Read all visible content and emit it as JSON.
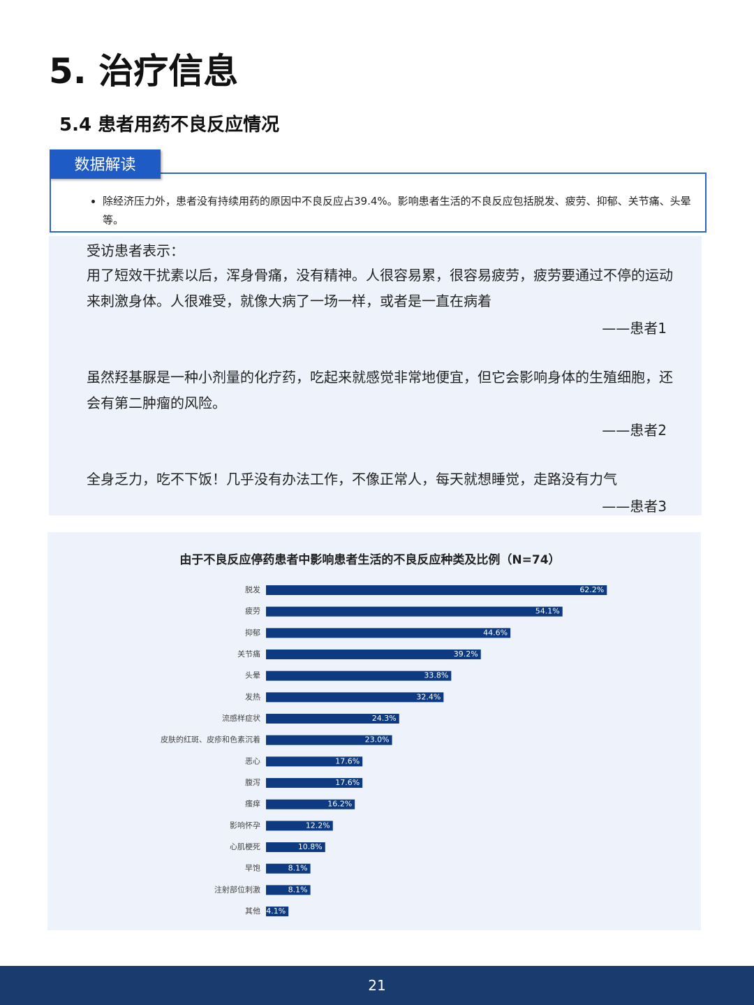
{
  "header": {
    "title": "5. 治疗信息",
    "subtitle": "5.4 患者用药不良反应情况"
  },
  "insight": {
    "tab": "数据解读",
    "bullets": [
      "除经济压力外，患者没有持续用药的原因中不良反应占39.4%。影响患者生活的不良反应包括脱发、疲劳、抑郁、关节痛、头晕等。"
    ]
  },
  "quotes": {
    "intro": "受访患者表示：",
    "items": [
      {
        "text": "用了短效干扰素以后，浑身骨痛，没有精神。人很容易累，很容易疲劳，疲劳要通过不停的运动来刺激身体。人很难受，就像大病了一场一样，或者是一直在病着",
        "source": "——患者1"
      },
      {
        "text": "虽然羟基脲是一种小剂量的化疗药，吃起来就感觉非常地便宜，但它会影响身体的生殖细胞，还会有第二肿瘤的风险。",
        "source": "——患者2"
      },
      {
        "text": "全身乏力，吃不下饭！几乎没有办法工作，不像正常人，每天就想睡觉，走路没有力气",
        "source": "——患者3"
      }
    ]
  },
  "chart_data": {
    "type": "hbar",
    "title": "由于不良反应停药患者中影响患者生活的不良反应种类及比例（N=74）",
    "categories": [
      "脱发",
      "疲劳",
      "抑郁",
      "关节痛",
      "头晕",
      "发热",
      "流感样症状",
      "皮肤的红斑、皮疹和色素沉着",
      "恶心",
      "腹泻",
      "瘙痒",
      "影响怀孕",
      "心肌梗死",
      "早饱",
      "注射部位刺激",
      "其他"
    ],
    "values": [
      62.2,
      54.1,
      44.6,
      39.2,
      33.8,
      32.4,
      24.3,
      23.0,
      17.6,
      17.6,
      16.2,
      12.2,
      10.8,
      8.1,
      8.1,
      4.1
    ],
    "value_labels": [
      "62.2%",
      "54.1%",
      "44.6%",
      "39.2%",
      "33.8%",
      "32.4%",
      "24.3%",
      "23.0%",
      "17.6%",
      "17.6%",
      "16.2%",
      "12.2%",
      "10.8%",
      "8.1%",
      "8.1%",
      "4.1%"
    ],
    "color": "#0d3a80"
  },
  "footer": {
    "page": "21"
  }
}
